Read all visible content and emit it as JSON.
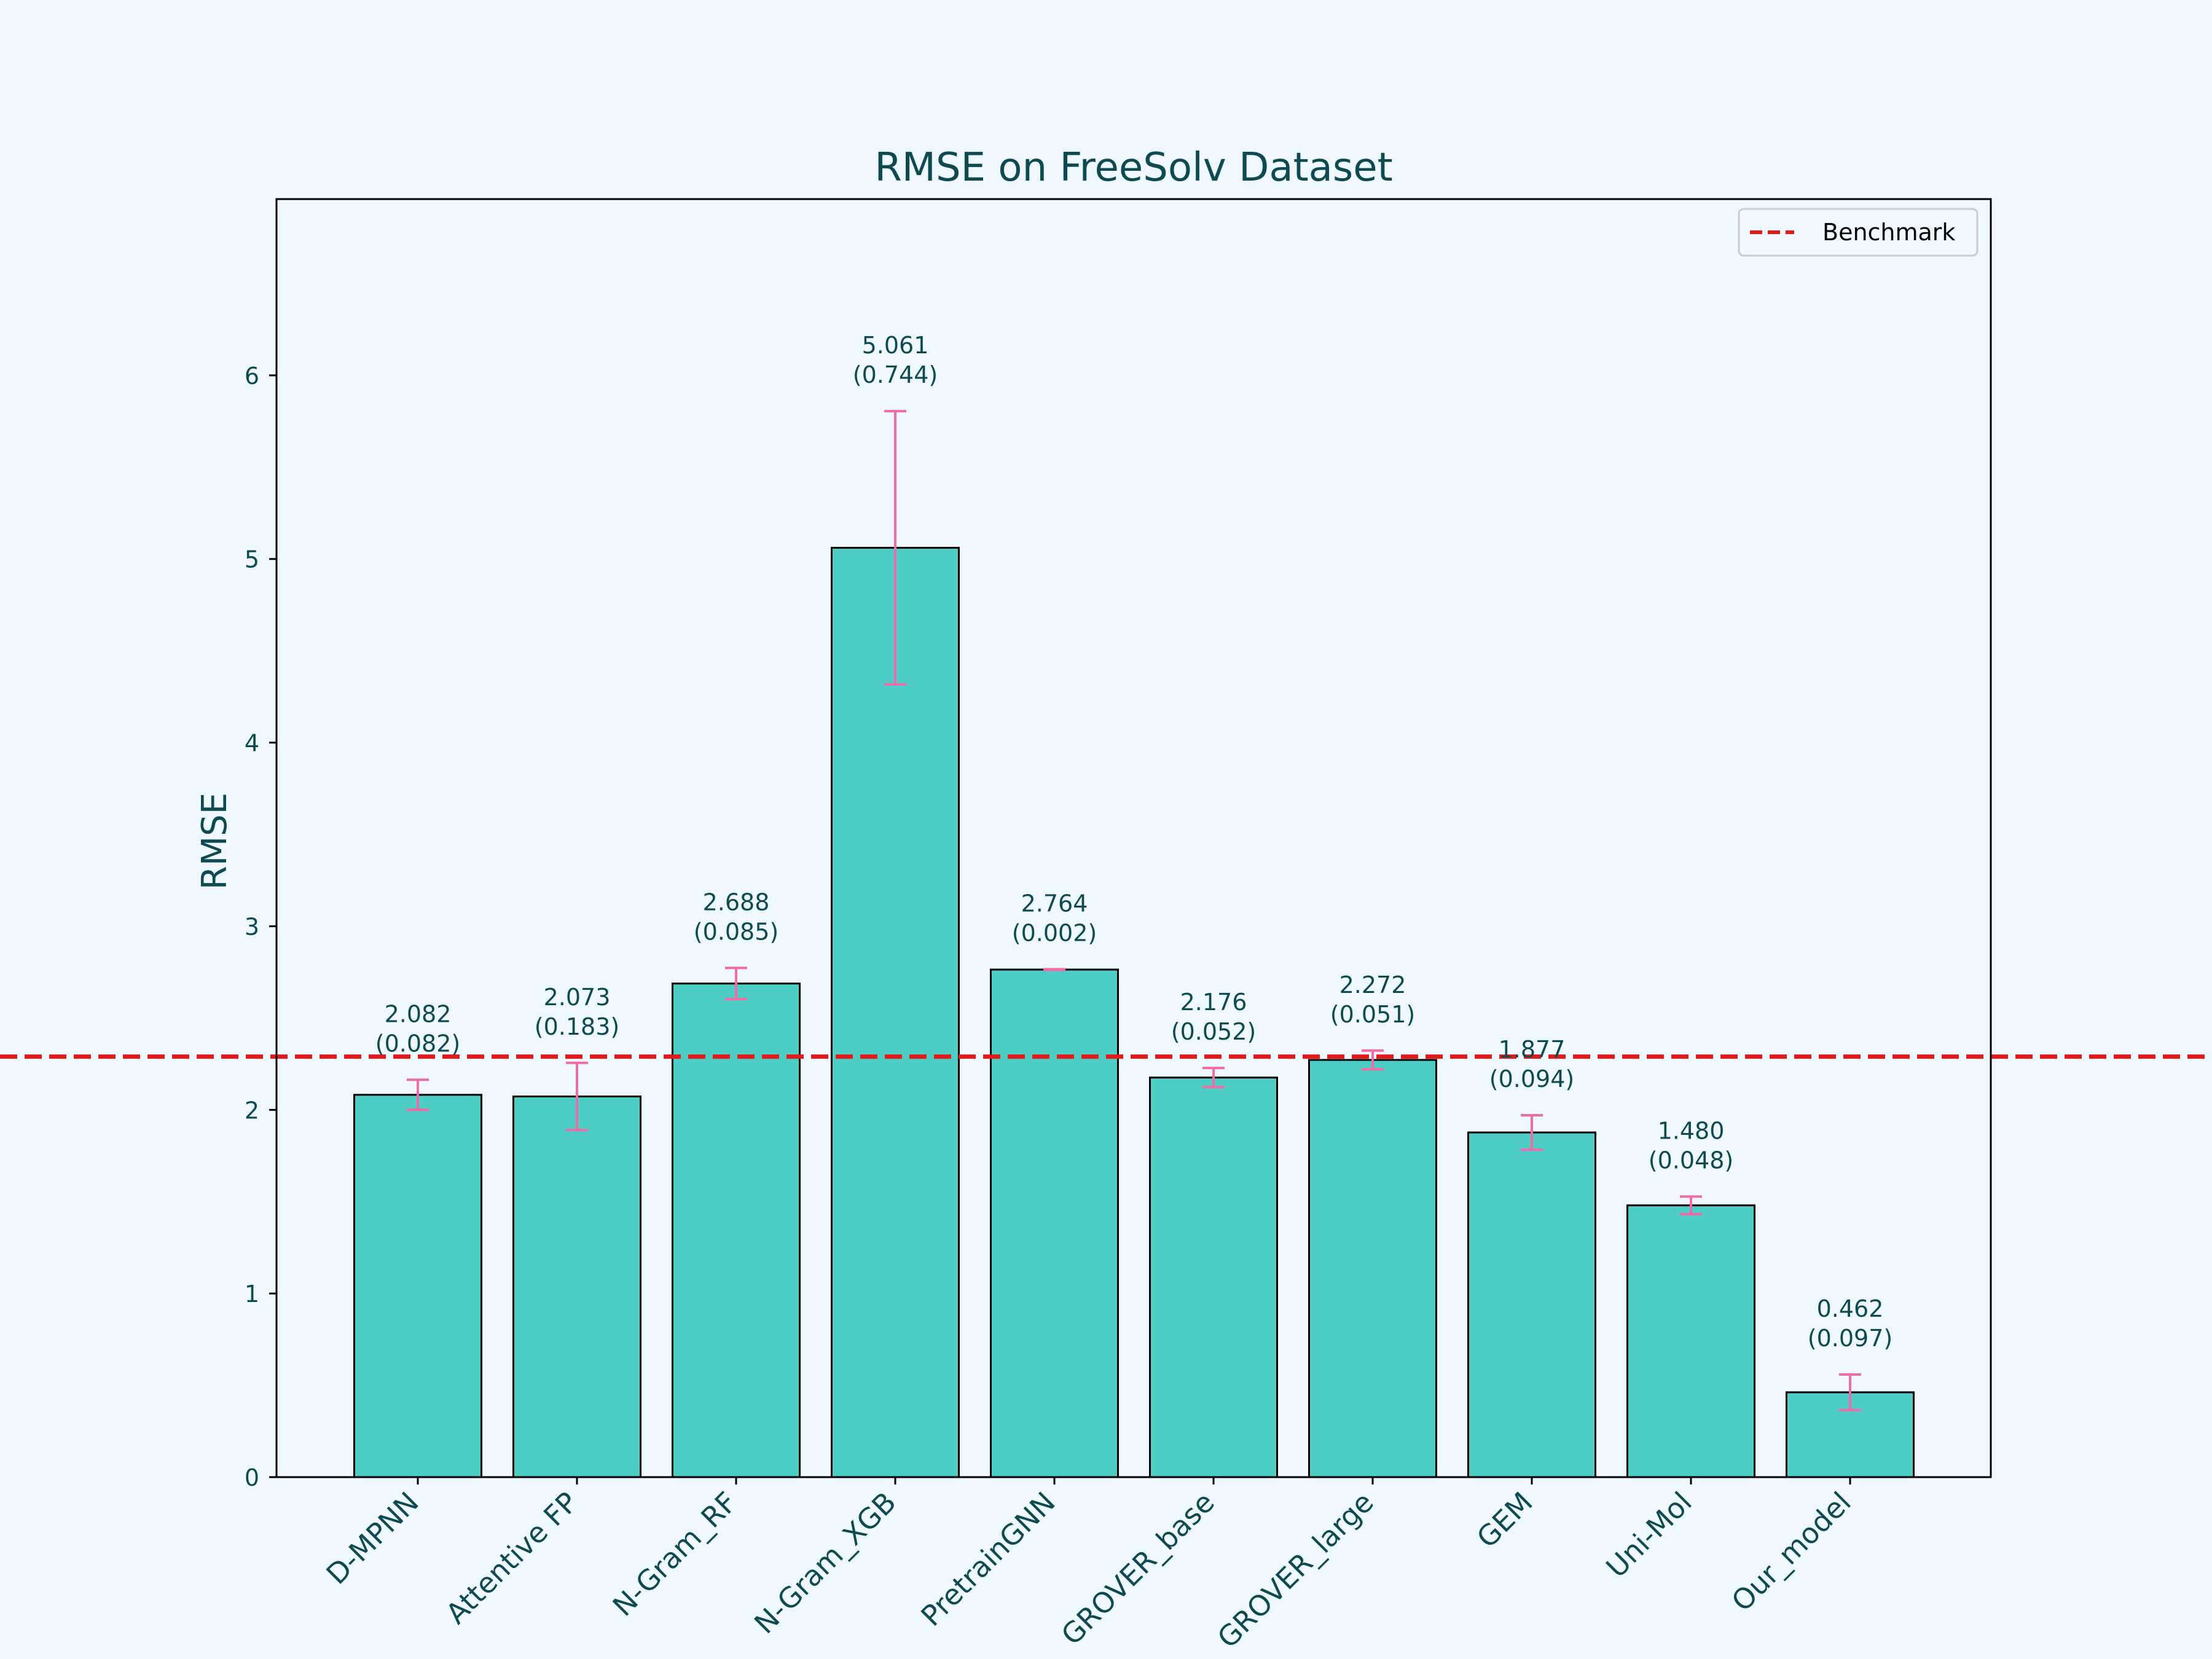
{
  "chart_data": {
    "type": "bar",
    "title": "RMSE on FreeSolv Dataset",
    "xlabel": "",
    "ylabel": "RMSE",
    "ylim": [
      0,
      6.96
    ],
    "yticks": [
      0,
      1,
      2,
      3,
      4,
      5,
      6
    ],
    "categories": [
      "D-MPNN",
      "Attentive FP",
      "N-Gram_RF",
      "N-Gram_XGB",
      "PretrainGNN",
      "GROVER_base",
      "GROVER_large",
      "GEM",
      "Uni-Mol",
      "Our_model"
    ],
    "values": [
      2.082,
      2.073,
      2.688,
      5.061,
      2.764,
      2.176,
      2.272,
      1.877,
      1.48,
      0.462
    ],
    "errors": [
      0.082,
      0.183,
      0.085,
      0.744,
      0.002,
      0.052,
      0.051,
      0.094,
      0.048,
      0.097
    ],
    "value_labels": [
      "2.082",
      "2.073",
      "2.688",
      "5.061",
      "2.764",
      "2.176",
      "2.272",
      "1.877",
      "1.480",
      "0.462"
    ],
    "error_labels": [
      "(0.082)",
      "(0.183)",
      "(0.085)",
      "(0.744)",
      "(0.002)",
      "(0.052)",
      "(0.051)",
      "(0.094)",
      "(0.048)",
      "(0.097)"
    ],
    "benchmark": {
      "name": "Benchmark",
      "value": 2.29
    },
    "legend": {
      "position": "top-right",
      "entries": [
        "Benchmark"
      ]
    },
    "grid": false,
    "colors": {
      "background": "#f0f8ff",
      "bar_fill": "#4ecdc4",
      "bar_edge": "#000000",
      "error_bar": "#f06ba8",
      "benchmark": "#e31a1c",
      "text": "#0e4a50"
    }
  }
}
